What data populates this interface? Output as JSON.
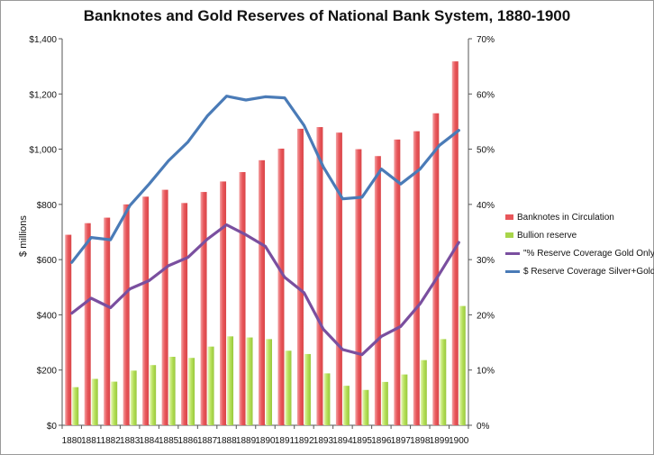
{
  "chart_data": {
    "type": "bar",
    "title": "Banknotes and Gold Reserves of National Bank System, 1880-1900",
    "ylabel": "$ millions",
    "ylim": [
      0,
      1400
    ],
    "y2lim": [
      0,
      70
    ],
    "y_ticks": [
      "$0",
      "$200",
      "$400",
      "$600",
      "$800",
      "$1,000",
      "$1,200",
      "$1,400"
    ],
    "y2_ticks": [
      "0%",
      "10%",
      "20%",
      "30%",
      "40%",
      "50%",
      "60%",
      "70%"
    ],
    "categories": [
      "1880",
      "1881",
      "1882",
      "1883",
      "1884",
      "1885",
      "1886",
      "1887",
      "1888",
      "1889",
      "1890",
      "1891",
      "1892",
      "1893",
      "1894",
      "1895",
      "1896",
      "1897",
      "1898",
      "1899",
      "1900"
    ],
    "bar_series": [
      {
        "name": "Banknotes in Circulation",
        "color": "#e8565a",
        "values": [
          690,
          732,
          752,
          800,
          828,
          853,
          805,
          845,
          883,
          917,
          960,
          1002,
          1074,
          1080,
          1060,
          1000,
          975,
          1035,
          1065,
          1130,
          1318
        ]
      },
      {
        "name": "Bullion reserve",
        "color": "#a8d54a",
        "values": [
          138,
          168,
          158,
          198,
          218,
          248,
          244,
          285,
          322,
          318,
          312,
          270,
          258,
          188,
          143,
          128,
          157,
          184,
          236,
          312,
          432
        ]
      }
    ],
    "line_series": [
      {
        "name": "\"% Reserve Coverage Gold Only\"",
        "color": "#7a4f9f",
        "values": [
          20.3,
          23.0,
          21.3,
          24.7,
          26.2,
          28.9,
          30.4,
          33.7,
          36.3,
          34.5,
          32.4,
          26.8,
          24.0,
          17.4,
          13.7,
          12.8,
          16.1,
          17.9,
          22.0,
          27.4,
          33.1
        ]
      },
      {
        "name": "$ Reserve Coverage Silver+Gold",
        "color": "#4a7bb7",
        "values": [
          29.5,
          34.0,
          33.6,
          39.8,
          43.7,
          47.9,
          51.3,
          56.0,
          59.6,
          58.9,
          59.5,
          59.3,
          54.3,
          46.8,
          41.0,
          41.3,
          46.4,
          43.7,
          46.4,
          50.7,
          53.4
        ]
      }
    ],
    "legend_position": "right",
    "grid": false
  }
}
